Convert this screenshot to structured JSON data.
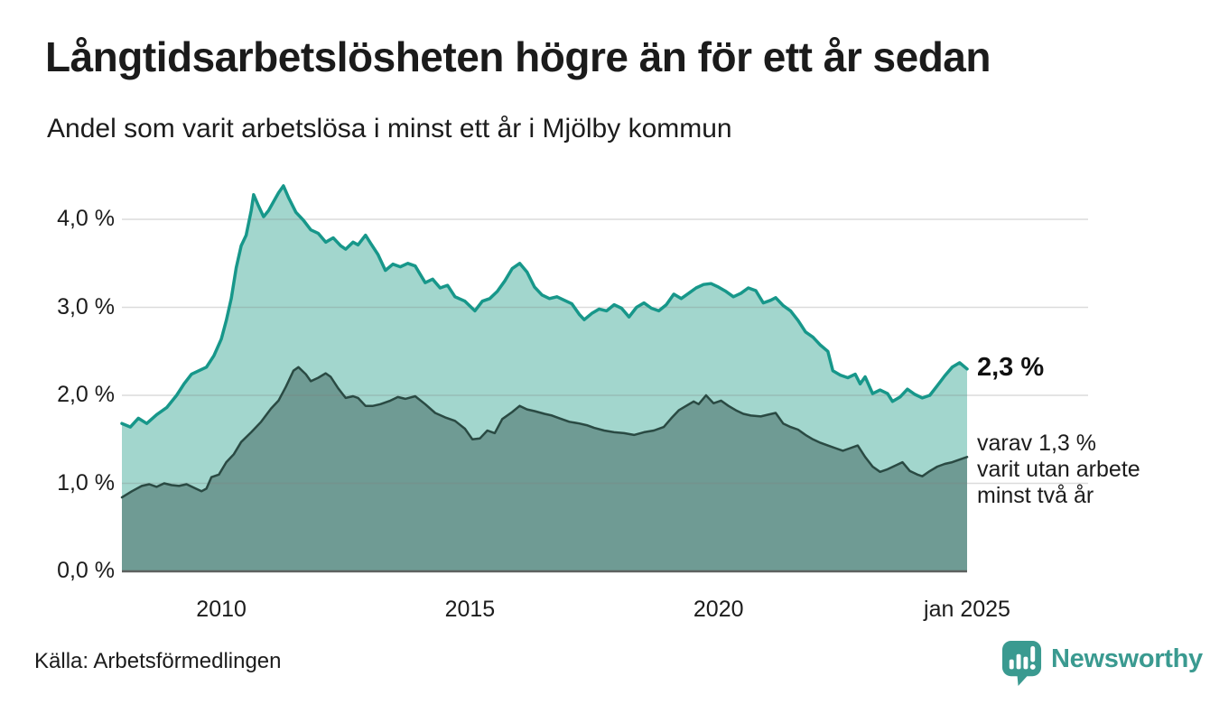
{
  "header": {
    "title": "Långtidsarbetslösheten högre än för ett år sedan",
    "subtitle": "Andel som varit arbetslösa i minst ett år i Mjölby kommun"
  },
  "chart_data": {
    "type": "area",
    "title": "Långtidsarbetslösheten högre än för ett år sedan",
    "subtitle": "Andel som varit arbetslösa i minst ett år i Mjölby kommun",
    "unit": "%",
    "x_range": [
      2008.0,
      2025.0
    ],
    "ylim": [
      0,
      4.55
    ],
    "grid": true,
    "yticks": [
      {
        "v": 0,
        "label": "0,0 %"
      },
      {
        "v": 1,
        "label": "1,0 %"
      },
      {
        "v": 2,
        "label": "2,0 %"
      },
      {
        "v": 3,
        "label": "3,0 %"
      },
      {
        "v": 4,
        "label": "4,0 %"
      }
    ],
    "xticks": [
      {
        "t": 2010,
        "label": "2010"
      },
      {
        "t": 2015,
        "label": "2015"
      },
      {
        "t": 2020,
        "label": "2020"
      },
      {
        "t": 2025,
        "label": "jan 2025"
      }
    ],
    "series": [
      {
        "name": "arbetslösa minst ett år",
        "line_color": "#17978a",
        "fill_color": "#a2d6cd",
        "line_width": 3.5,
        "latest_value": 2.3,
        "points": [
          [
            2008.0,
            1.68
          ],
          [
            2008.17,
            1.64
          ],
          [
            2008.33,
            1.74
          ],
          [
            2008.5,
            1.68
          ],
          [
            2008.7,
            1.78
          ],
          [
            2008.9,
            1.86
          ],
          [
            2009.1,
            2.0
          ],
          [
            2009.25,
            2.13
          ],
          [
            2009.4,
            2.24
          ],
          [
            2009.55,
            2.28
          ],
          [
            2009.7,
            2.32
          ],
          [
            2009.85,
            2.45
          ],
          [
            2010.0,
            2.64
          ],
          [
            2010.1,
            2.85
          ],
          [
            2010.2,
            3.1
          ],
          [
            2010.3,
            3.45
          ],
          [
            2010.4,
            3.7
          ],
          [
            2010.5,
            3.82
          ],
          [
            2010.6,
            4.1
          ],
          [
            2010.65,
            4.28
          ],
          [
            2010.75,
            4.15
          ],
          [
            2010.85,
            4.03
          ],
          [
            2010.95,
            4.1
          ],
          [
            2011.05,
            4.2
          ],
          [
            2011.15,
            4.3
          ],
          [
            2011.25,
            4.38
          ],
          [
            2011.35,
            4.25
          ],
          [
            2011.5,
            4.08
          ],
          [
            2011.65,
            3.99
          ],
          [
            2011.8,
            3.88
          ],
          [
            2011.95,
            3.84
          ],
          [
            2012.1,
            3.74
          ],
          [
            2012.25,
            3.79
          ],
          [
            2012.4,
            3.7
          ],
          [
            2012.5,
            3.66
          ],
          [
            2012.65,
            3.74
          ],
          [
            2012.75,
            3.71
          ],
          [
            2012.9,
            3.82
          ],
          [
            2013.0,
            3.73
          ],
          [
            2013.15,
            3.6
          ],
          [
            2013.3,
            3.42
          ],
          [
            2013.45,
            3.49
          ],
          [
            2013.6,
            3.46
          ],
          [
            2013.75,
            3.5
          ],
          [
            2013.9,
            3.47
          ],
          [
            2014.1,
            3.28
          ],
          [
            2014.25,
            3.32
          ],
          [
            2014.4,
            3.22
          ],
          [
            2014.55,
            3.25
          ],
          [
            2014.7,
            3.12
          ],
          [
            2014.9,
            3.07
          ],
          [
            2015.1,
            2.96
          ],
          [
            2015.25,
            3.07
          ],
          [
            2015.4,
            3.1
          ],
          [
            2015.55,
            3.18
          ],
          [
            2015.7,
            3.3
          ],
          [
            2015.85,
            3.44
          ],
          [
            2016.0,
            3.5
          ],
          [
            2016.15,
            3.4
          ],
          [
            2016.3,
            3.23
          ],
          [
            2016.45,
            3.14
          ],
          [
            2016.6,
            3.1
          ],
          [
            2016.75,
            3.12
          ],
          [
            2016.9,
            3.08
          ],
          [
            2017.05,
            3.04
          ],
          [
            2017.2,
            2.92
          ],
          [
            2017.3,
            2.86
          ],
          [
            2017.45,
            2.93
          ],
          [
            2017.6,
            2.98
          ],
          [
            2017.75,
            2.96
          ],
          [
            2017.9,
            3.03
          ],
          [
            2018.05,
            2.99
          ],
          [
            2018.2,
            2.89
          ],
          [
            2018.35,
            3.0
          ],
          [
            2018.5,
            3.05
          ],
          [
            2018.65,
            2.99
          ],
          [
            2018.8,
            2.96
          ],
          [
            2018.95,
            3.03
          ],
          [
            2019.1,
            3.15
          ],
          [
            2019.25,
            3.1
          ],
          [
            2019.4,
            3.16
          ],
          [
            2019.55,
            3.22
          ],
          [
            2019.7,
            3.26
          ],
          [
            2019.85,
            3.27
          ],
          [
            2020.0,
            3.23
          ],
          [
            2020.15,
            3.18
          ],
          [
            2020.3,
            3.12
          ],
          [
            2020.45,
            3.16
          ],
          [
            2020.6,
            3.22
          ],
          [
            2020.75,
            3.19
          ],
          [
            2020.9,
            3.05
          ],
          [
            2021.05,
            3.08
          ],
          [
            2021.15,
            3.11
          ],
          [
            2021.3,
            3.02
          ],
          [
            2021.45,
            2.96
          ],
          [
            2021.6,
            2.85
          ],
          [
            2021.75,
            2.72
          ],
          [
            2021.9,
            2.66
          ],
          [
            2022.05,
            2.57
          ],
          [
            2022.2,
            2.5
          ],
          [
            2022.3,
            2.28
          ],
          [
            2022.45,
            2.23
          ],
          [
            2022.6,
            2.2
          ],
          [
            2022.75,
            2.24
          ],
          [
            2022.85,
            2.13
          ],
          [
            2022.95,
            2.21
          ],
          [
            2023.1,
            2.02
          ],
          [
            2023.25,
            2.06
          ],
          [
            2023.4,
            2.02
          ],
          [
            2023.5,
            1.93
          ],
          [
            2023.65,
            1.98
          ],
          [
            2023.8,
            2.07
          ],
          [
            2023.95,
            2.01
          ],
          [
            2024.1,
            1.97
          ],
          [
            2024.25,
            2.0
          ],
          [
            2024.4,
            2.11
          ],
          [
            2024.55,
            2.22
          ],
          [
            2024.7,
            2.32
          ],
          [
            2024.85,
            2.37
          ],
          [
            2025.0,
            2.3
          ]
        ]
      },
      {
        "name": "varav utan arbete minst två år",
        "line_color": "#2a4a43",
        "fill_color": "#6f9b94",
        "line_width": 2.5,
        "latest_value": 1.3,
        "points": [
          [
            2008.0,
            0.84
          ],
          [
            2008.2,
            0.91
          ],
          [
            2008.4,
            0.97
          ],
          [
            2008.55,
            0.99
          ],
          [
            2008.7,
            0.96
          ],
          [
            2008.85,
            1.0
          ],
          [
            2009.0,
            0.98
          ],
          [
            2009.15,
            0.97
          ],
          [
            2009.3,
            0.99
          ],
          [
            2009.45,
            0.95
          ],
          [
            2009.6,
            0.91
          ],
          [
            2009.7,
            0.94
          ],
          [
            2009.8,
            1.07
          ],
          [
            2009.95,
            1.1
          ],
          [
            2010.1,
            1.24
          ],
          [
            2010.25,
            1.33
          ],
          [
            2010.4,
            1.47
          ],
          [
            2010.6,
            1.58
          ],
          [
            2010.8,
            1.7
          ],
          [
            2011.0,
            1.85
          ],
          [
            2011.15,
            1.94
          ],
          [
            2011.3,
            2.1
          ],
          [
            2011.45,
            2.28
          ],
          [
            2011.55,
            2.32
          ],
          [
            2011.7,
            2.24
          ],
          [
            2011.8,
            2.16
          ],
          [
            2011.95,
            2.2
          ],
          [
            2012.1,
            2.25
          ],
          [
            2012.2,
            2.21
          ],
          [
            2012.35,
            2.08
          ],
          [
            2012.5,
            1.97
          ],
          [
            2012.65,
            1.99
          ],
          [
            2012.75,
            1.97
          ],
          [
            2012.9,
            1.88
          ],
          [
            2013.05,
            1.88
          ],
          [
            2013.2,
            1.9
          ],
          [
            2013.4,
            1.94
          ],
          [
            2013.55,
            1.98
          ],
          [
            2013.7,
            1.96
          ],
          [
            2013.9,
            1.99
          ],
          [
            2014.1,
            1.9
          ],
          [
            2014.3,
            1.8
          ],
          [
            2014.5,
            1.75
          ],
          [
            2014.7,
            1.71
          ],
          [
            2014.9,
            1.62
          ],
          [
            2015.05,
            1.5
          ],
          [
            2015.2,
            1.51
          ],
          [
            2015.35,
            1.6
          ],
          [
            2015.5,
            1.57
          ],
          [
            2015.65,
            1.73
          ],
          [
            2015.85,
            1.81
          ],
          [
            2016.0,
            1.88
          ],
          [
            2016.15,
            1.84
          ],
          [
            2016.3,
            1.82
          ],
          [
            2016.5,
            1.79
          ],
          [
            2016.65,
            1.77
          ],
          [
            2016.8,
            1.74
          ],
          [
            2017.0,
            1.7
          ],
          [
            2017.2,
            1.68
          ],
          [
            2017.35,
            1.66
          ],
          [
            2017.5,
            1.63
          ],
          [
            2017.7,
            1.6
          ],
          [
            2017.9,
            1.58
          ],
          [
            2018.1,
            1.57
          ],
          [
            2018.3,
            1.55
          ],
          [
            2018.5,
            1.58
          ],
          [
            2018.7,
            1.6
          ],
          [
            2018.9,
            1.64
          ],
          [
            2019.05,
            1.74
          ],
          [
            2019.2,
            1.83
          ],
          [
            2019.35,
            1.88
          ],
          [
            2019.5,
            1.93
          ],
          [
            2019.6,
            1.9
          ],
          [
            2019.75,
            2.0
          ],
          [
            2019.9,
            1.91
          ],
          [
            2020.05,
            1.94
          ],
          [
            2020.2,
            1.88
          ],
          [
            2020.35,
            1.83
          ],
          [
            2020.5,
            1.79
          ],
          [
            2020.65,
            1.77
          ],
          [
            2020.85,
            1.76
          ],
          [
            2021.0,
            1.78
          ],
          [
            2021.15,
            1.8
          ],
          [
            2021.3,
            1.68
          ],
          [
            2021.45,
            1.64
          ],
          [
            2021.6,
            1.61
          ],
          [
            2021.75,
            1.55
          ],
          [
            2021.9,
            1.5
          ],
          [
            2022.05,
            1.46
          ],
          [
            2022.2,
            1.43
          ],
          [
            2022.35,
            1.4
          ],
          [
            2022.5,
            1.37
          ],
          [
            2022.65,
            1.4
          ],
          [
            2022.8,
            1.43
          ],
          [
            2022.95,
            1.3
          ],
          [
            2023.1,
            1.19
          ],
          [
            2023.25,
            1.13
          ],
          [
            2023.4,
            1.16
          ],
          [
            2023.55,
            1.2
          ],
          [
            2023.7,
            1.24
          ],
          [
            2023.85,
            1.14
          ],
          [
            2024.0,
            1.1
          ],
          [
            2024.1,
            1.08
          ],
          [
            2024.25,
            1.14
          ],
          [
            2024.4,
            1.19
          ],
          [
            2024.55,
            1.22
          ],
          [
            2024.7,
            1.24
          ],
          [
            2024.85,
            1.27
          ],
          [
            2025.0,
            1.3
          ]
        ]
      }
    ],
    "annotations": {
      "latest_total": "2,3 %",
      "secondary": "varav 1,3 %\nvarit utan arbete\nminst två år"
    }
  },
  "footer": {
    "source": "Källa: Arbetsförmedlingen",
    "brand": "Newsworthy",
    "brand_color": "#3a9a90"
  }
}
